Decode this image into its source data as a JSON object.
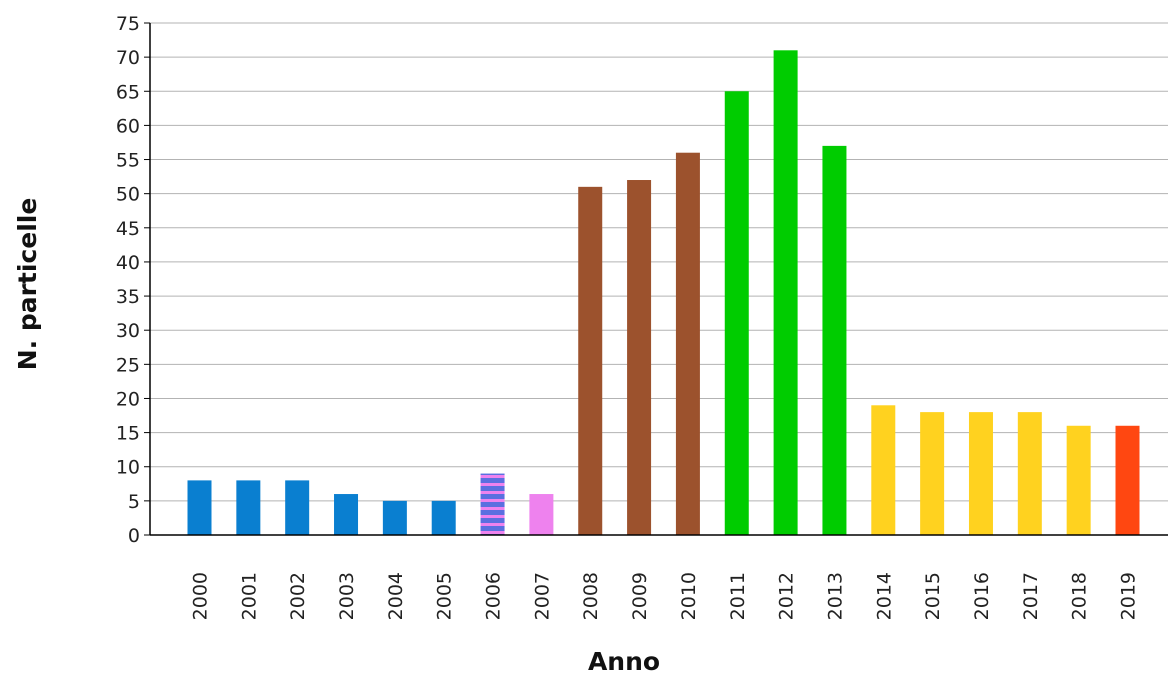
{
  "chart_data": {
    "type": "bar",
    "xlabel": "Anno",
    "ylabel": "N. particelle",
    "ylim": [
      0,
      75
    ],
    "ytick_step": 5,
    "grid": true,
    "categories": [
      "2000",
      "2001",
      "2002",
      "2003",
      "2004",
      "2005",
      "2006",
      "2007",
      "2008",
      "2009",
      "2010",
      "2011",
      "2012",
      "2013",
      "2014",
      "2015",
      "2016",
      "2017",
      "2018",
      "2019"
    ],
    "values": [
      8,
      8,
      8,
      6,
      5,
      5,
      9,
      6,
      51,
      52,
      56,
      65,
      71,
      57,
      19,
      18,
      18,
      18,
      16,
      16
    ],
    "bar_colors": [
      "#0a7fd0",
      "#0a7fd0",
      "#0a7fd0",
      "#0a7fd0",
      "#0a7fd0",
      "#0a7fd0",
      "#5b6fe0",
      "#ee82ee",
      "#9c522d",
      "#9c522d",
      "#9c522d",
      "#00cc00",
      "#00cc00",
      "#00cc00",
      "#ffd21f",
      "#ffd21f",
      "#ffd21f",
      "#ffd21f",
      "#ffd21f",
      "#ff4711"
    ],
    "bar_patterns": [
      "solid",
      "solid",
      "solid",
      "solid",
      "solid",
      "solid",
      "striped",
      "solid",
      "solid",
      "solid",
      "solid",
      "solid",
      "solid",
      "solid",
      "solid",
      "solid",
      "solid",
      "solid",
      "solid",
      "solid"
    ],
    "pattern_stripe_color": "#ee82ee"
  }
}
